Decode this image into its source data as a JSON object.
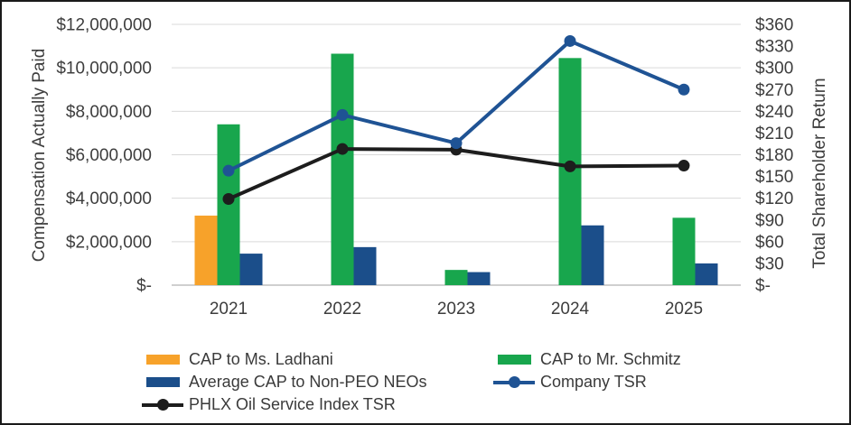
{
  "frame": {
    "background_color": "#FFFFFF",
    "border_color": "#1A1A1A"
  },
  "chart_data": {
    "type": "combo-bar-line",
    "categories": [
      "2021",
      "2022",
      "2023",
      "2024",
      "2025"
    ],
    "left_axis": {
      "title": "Compensation Actually Paid",
      "min": 0,
      "max": 12000000,
      "step": 2000000,
      "tick_labels_top_to_bottom": [
        "$12,000,000",
        "$10,000,000",
        "$8,000,000",
        "$6,000,000",
        "$4,000,000",
        "$2,000,000",
        "$-"
      ]
    },
    "right_axis": {
      "title": "Total Shareholder Return",
      "min": 0,
      "max": 360,
      "step": 30,
      "tick_labels_top_to_bottom": [
        "$360",
        "$330",
        "$300",
        "$270",
        "$240",
        "$210",
        "$180",
        "$150",
        "$120",
        "$90",
        "$60",
        "$30",
        "$-"
      ]
    },
    "bar_series": [
      {
        "name": "CAP to Ms. Ladhani",
        "color": "#F7A22A",
        "axis": "left",
        "values": [
          3200000,
          null,
          null,
          null,
          null
        ]
      },
      {
        "name": "CAP to Mr. Schmitz",
        "color": "#18A64D",
        "axis": "left",
        "values": [
          7400000,
          10650000,
          700000,
          10450000,
          3100000
        ]
      },
      {
        "name": "Average CAP to Non-PEO NEOs",
        "color": "#1B4E8A",
        "axis": "left",
        "values": [
          1450000,
          1750000,
          600000,
          2750000,
          1000000
        ]
      }
    ],
    "line_series": [
      {
        "name": "Company TSR",
        "color": "#1F5394",
        "axis": "right",
        "values": [
          158,
          235,
          196,
          337,
          270
        ]
      },
      {
        "name": "PHLX Oil Service Index TSR",
        "color": "#1D1D1D",
        "axis": "right",
        "values": [
          119,
          188,
          187,
          164,
          165
        ]
      }
    ],
    "gridline_color": "#D9D9D9",
    "axis_line_color": "#BFBFBF",
    "text_color": "#3D3D3D",
    "legend_position": "bottom",
    "grid": true
  },
  "legend": {
    "columns": [
      {
        "items": [
          {
            "label": "CAP to Ms. Ladhani",
            "marker": "bar",
            "color": "#F7A22A"
          },
          {
            "label": "Average CAP to Non-PEO NEOs",
            "marker": "bar",
            "color": "#1B4E8A"
          },
          {
            "label": "PHLX Oil Service Index TSR",
            "marker": "line",
            "color": "#1D1D1D"
          }
        ]
      },
      {
        "items": [
          {
            "label": "CAP to Mr. Schmitz",
            "marker": "bar",
            "color": "#18A64D"
          },
          {
            "label": "Company TSR",
            "marker": "line",
            "color": "#1F5394"
          }
        ]
      }
    ]
  }
}
